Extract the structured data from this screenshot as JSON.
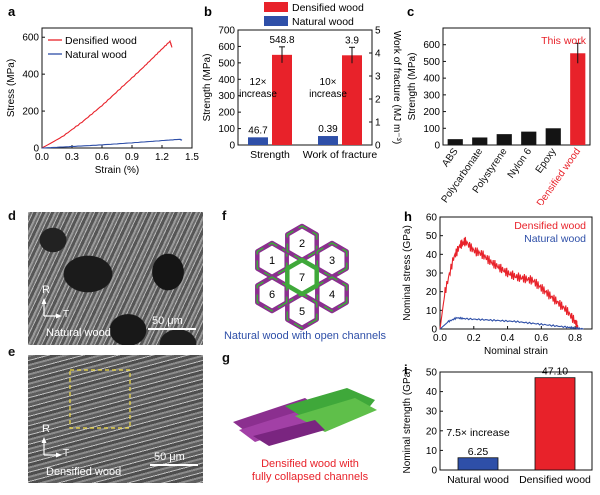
{
  "panels": {
    "a": "a",
    "b": "b",
    "c": "c",
    "d": "d",
    "e": "e",
    "f": "f",
    "g": "g",
    "h": "h",
    "i": "i"
  },
  "colors": {
    "densified": "#e8222a",
    "natural": "#2e4fa8",
    "wood_purple": "#8b2f8f",
    "wood_green": "#3fa83a"
  },
  "panel_a": {
    "chart_data": {
      "type": "line",
      "xlabel": "Strain (%)",
      "ylabel": "Stress (MPa)",
      "xlim": [
        0,
        1.5
      ],
      "ylim": [
        0,
        650
      ],
      "x_ticks": [
        "0.0",
        "0.3",
        "0.6",
        "0.9",
        "1.2",
        "1.5"
      ],
      "y_ticks": [
        "0",
        "200",
        "400",
        "600"
      ],
      "legend_position": "top-left",
      "series": [
        {
          "name": "Densified wood",
          "points": [
            [
              0,
              0
            ],
            [
              0.2,
              60
            ],
            [
              0.4,
              140
            ],
            [
              0.6,
              230
            ],
            [
              0.8,
              330
            ],
            [
              1.0,
              430
            ],
            [
              1.15,
              510
            ],
            [
              1.28,
              578
            ],
            [
              1.3,
              545
            ]
          ]
        },
        {
          "name": "Natural wood",
          "points": [
            [
              0,
              0
            ],
            [
              0.3,
              8
            ],
            [
              0.6,
              17
            ],
            [
              0.9,
              28
            ],
            [
              1.2,
              40
            ],
            [
              1.38,
              47
            ],
            [
              1.4,
              42
            ]
          ]
        }
      ]
    }
  },
  "panel_b": {
    "chart_data": {
      "type": "bar",
      "categories": [
        "Strength",
        "Work of fracture"
      ],
      "ylabel": "Strength (MPa)",
      "y2label": "Work of fracture (MJ m⁻³)",
      "ylim": [
        0,
        700
      ],
      "y2lim": [
        0,
        5
      ],
      "y_ticks": [
        "0",
        "100",
        "200",
        "300",
        "400",
        "500",
        "600",
        "700"
      ],
      "y2_ticks": [
        "0",
        "1",
        "2",
        "3",
        "4",
        "5"
      ],
      "legend_position": "top",
      "series": [
        {
          "name": "Densified wood",
          "values": [
            548.8,
            3.9
          ],
          "labels": [
            "548.8",
            "3.9"
          ]
        },
        {
          "name": "Natural wood",
          "values": [
            46.7,
            0.39
          ],
          "labels": [
            "46.7",
            "0.39"
          ]
        }
      ],
      "annotations": [
        [
          "12×",
          "increase"
        ],
        [
          "10×",
          "increase"
        ]
      ]
    }
  },
  "panel_c": {
    "chart_data": {
      "type": "bar",
      "categories": [
        "ABS",
        "Polycarbonate",
        "Polystyrene",
        "Nylon 6",
        "Epoxy",
        "Densified wood"
      ],
      "values": [
        35,
        45,
        65,
        80,
        100,
        548.8
      ],
      "ylabel": "Strength (MPa)",
      "ylim": [
        0,
        700
      ],
      "y_ticks": [
        "0",
        "100",
        "200",
        "300",
        "400",
        "500",
        "600"
      ],
      "annotation": "This work"
    }
  },
  "panel_d": {
    "axis_r": "R",
    "axis_t": "T",
    "caption": "Natural wood",
    "scale": "50 μm"
  },
  "panel_e": {
    "axis_r": "R",
    "axis_t": "T",
    "caption": "Densified wood",
    "scale": "50 μm"
  },
  "panel_f": {
    "channels": [
      "1",
      "2",
      "3",
      "4",
      "5",
      "6",
      "7"
    ],
    "caption": "Natural wood with open channels"
  },
  "panel_g": {
    "caption_line1": "Densified wood with",
    "caption_line2": "fully collapsed channels"
  },
  "panel_h": {
    "chart_data": {
      "type": "line",
      "xlabel": "Nominal strain",
      "ylabel": "Nominal stress (GPa)",
      "xlim": [
        0,
        0.9
      ],
      "ylim": [
        0,
        60
      ],
      "x_ticks": [
        "0.0",
        "0.2",
        "0.4",
        "0.6",
        "0.8"
      ],
      "y_ticks": [
        "0",
        "10",
        "20",
        "30",
        "40",
        "50",
        "60"
      ],
      "legend_position": "top-right",
      "series": [
        {
          "name": "Densified wood",
          "points": [
            [
              0,
              0
            ],
            [
              0.03,
              20
            ],
            [
              0.08,
              38
            ],
            [
              0.12,
              45
            ],
            [
              0.15,
              47
            ],
            [
              0.2,
              42
            ],
            [
              0.25,
              40
            ],
            [
              0.3,
              36
            ],
            [
              0.35,
              33
            ],
            [
              0.4,
              30
            ],
            [
              0.45,
              28
            ],
            [
              0.5,
              27
            ],
            [
              0.55,
              26
            ],
            [
              0.6,
              22
            ],
            [
              0.65,
              18
            ],
            [
              0.7,
              14
            ],
            [
              0.75,
              10
            ],
            [
              0.8,
              4
            ],
            [
              0.82,
              0
            ]
          ]
        },
        {
          "name": "Natural wood",
          "points": [
            [
              0,
              0
            ],
            [
              0.05,
              4
            ],
            [
              0.1,
              6
            ],
            [
              0.15,
              5.5
            ],
            [
              0.25,
              5
            ],
            [
              0.35,
              4.5
            ],
            [
              0.45,
              4
            ],
            [
              0.55,
              3
            ],
            [
              0.65,
              2
            ],
            [
              0.75,
              1
            ],
            [
              0.8,
              0.5
            ],
            [
              0.85,
              0
            ]
          ]
        }
      ]
    }
  },
  "panel_i": {
    "chart_data": {
      "type": "bar",
      "categories": [
        "Natural wood",
        "Densified wood"
      ],
      "values": [
        6.25,
        47.1
      ],
      "value_labels": [
        "6.25",
        "47.10"
      ],
      "ylabel": "Nominal strength (GPa)",
      "ylim": [
        0,
        50
      ],
      "y_ticks": [
        "0",
        "10",
        "20",
        "30",
        "40",
        "50"
      ],
      "annotation": "7.5× increase"
    }
  }
}
